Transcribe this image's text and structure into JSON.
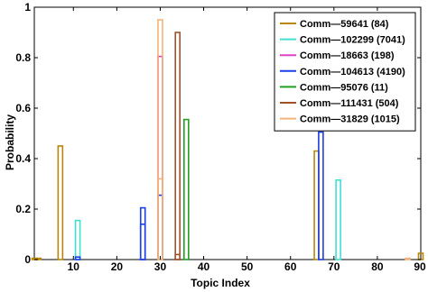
{
  "chart_data": {
    "type": "bar",
    "title": "",
    "xlabel": "Topic Index",
    "ylabel": "Probability",
    "xlim": [
      1,
      90
    ],
    "ylim": [
      0,
      1
    ],
    "xticks": [
      10,
      20,
      30,
      40,
      50,
      60,
      70,
      80,
      90
    ],
    "yticks": [
      0,
      0.2,
      0.4,
      0.6,
      0.8,
      1
    ],
    "ytick_labels": [
      "0",
      "0.2",
      "0.4",
      "0.6",
      "0.8",
      "1"
    ],
    "grid": false,
    "legend_position": "top-right",
    "series": [
      {
        "name": "Comm—59641 (84)",
        "color": "#b8860b",
        "points": [
          [
            1,
            0.005
          ],
          [
            2,
            0.005
          ],
          [
            7,
            0.45
          ],
          [
            66,
            0.43
          ],
          [
            90,
            0.025
          ]
        ]
      },
      {
        "name": "Comm—102299 (7041)",
        "color": "#40e0d0",
        "points": [
          [
            11,
            0.155
          ],
          [
            71,
            0.315
          ]
        ]
      },
      {
        "name": "Comm—18663 (198)",
        "color": "#e040c8",
        "points": [
          [
            30,
            0.805
          ]
        ]
      },
      {
        "name": "Comm—104613 (4190)",
        "color": "#1a3ee8",
        "points": [
          [
            11,
            0.01
          ],
          [
            26,
            0.205
          ],
          [
            26,
            0.14
          ],
          [
            30,
            0.255
          ],
          [
            67,
            0.505
          ]
        ]
      },
      {
        "name": "Comm—95076 (11)",
        "color": "#22a022",
        "points": [
          [
            36,
            0.555
          ]
        ]
      },
      {
        "name": "Comm—111431 (504)",
        "color": "#a0522d",
        "points": [
          [
            34,
            0.9
          ],
          [
            34,
            0.02
          ]
        ]
      },
      {
        "name": "Comm—31829 (1015)",
        "color": "#f4b37a",
        "points": [
          [
            30,
            0.95
          ],
          [
            30,
            0.32
          ],
          [
            87,
            0.005
          ]
        ]
      }
    ]
  }
}
